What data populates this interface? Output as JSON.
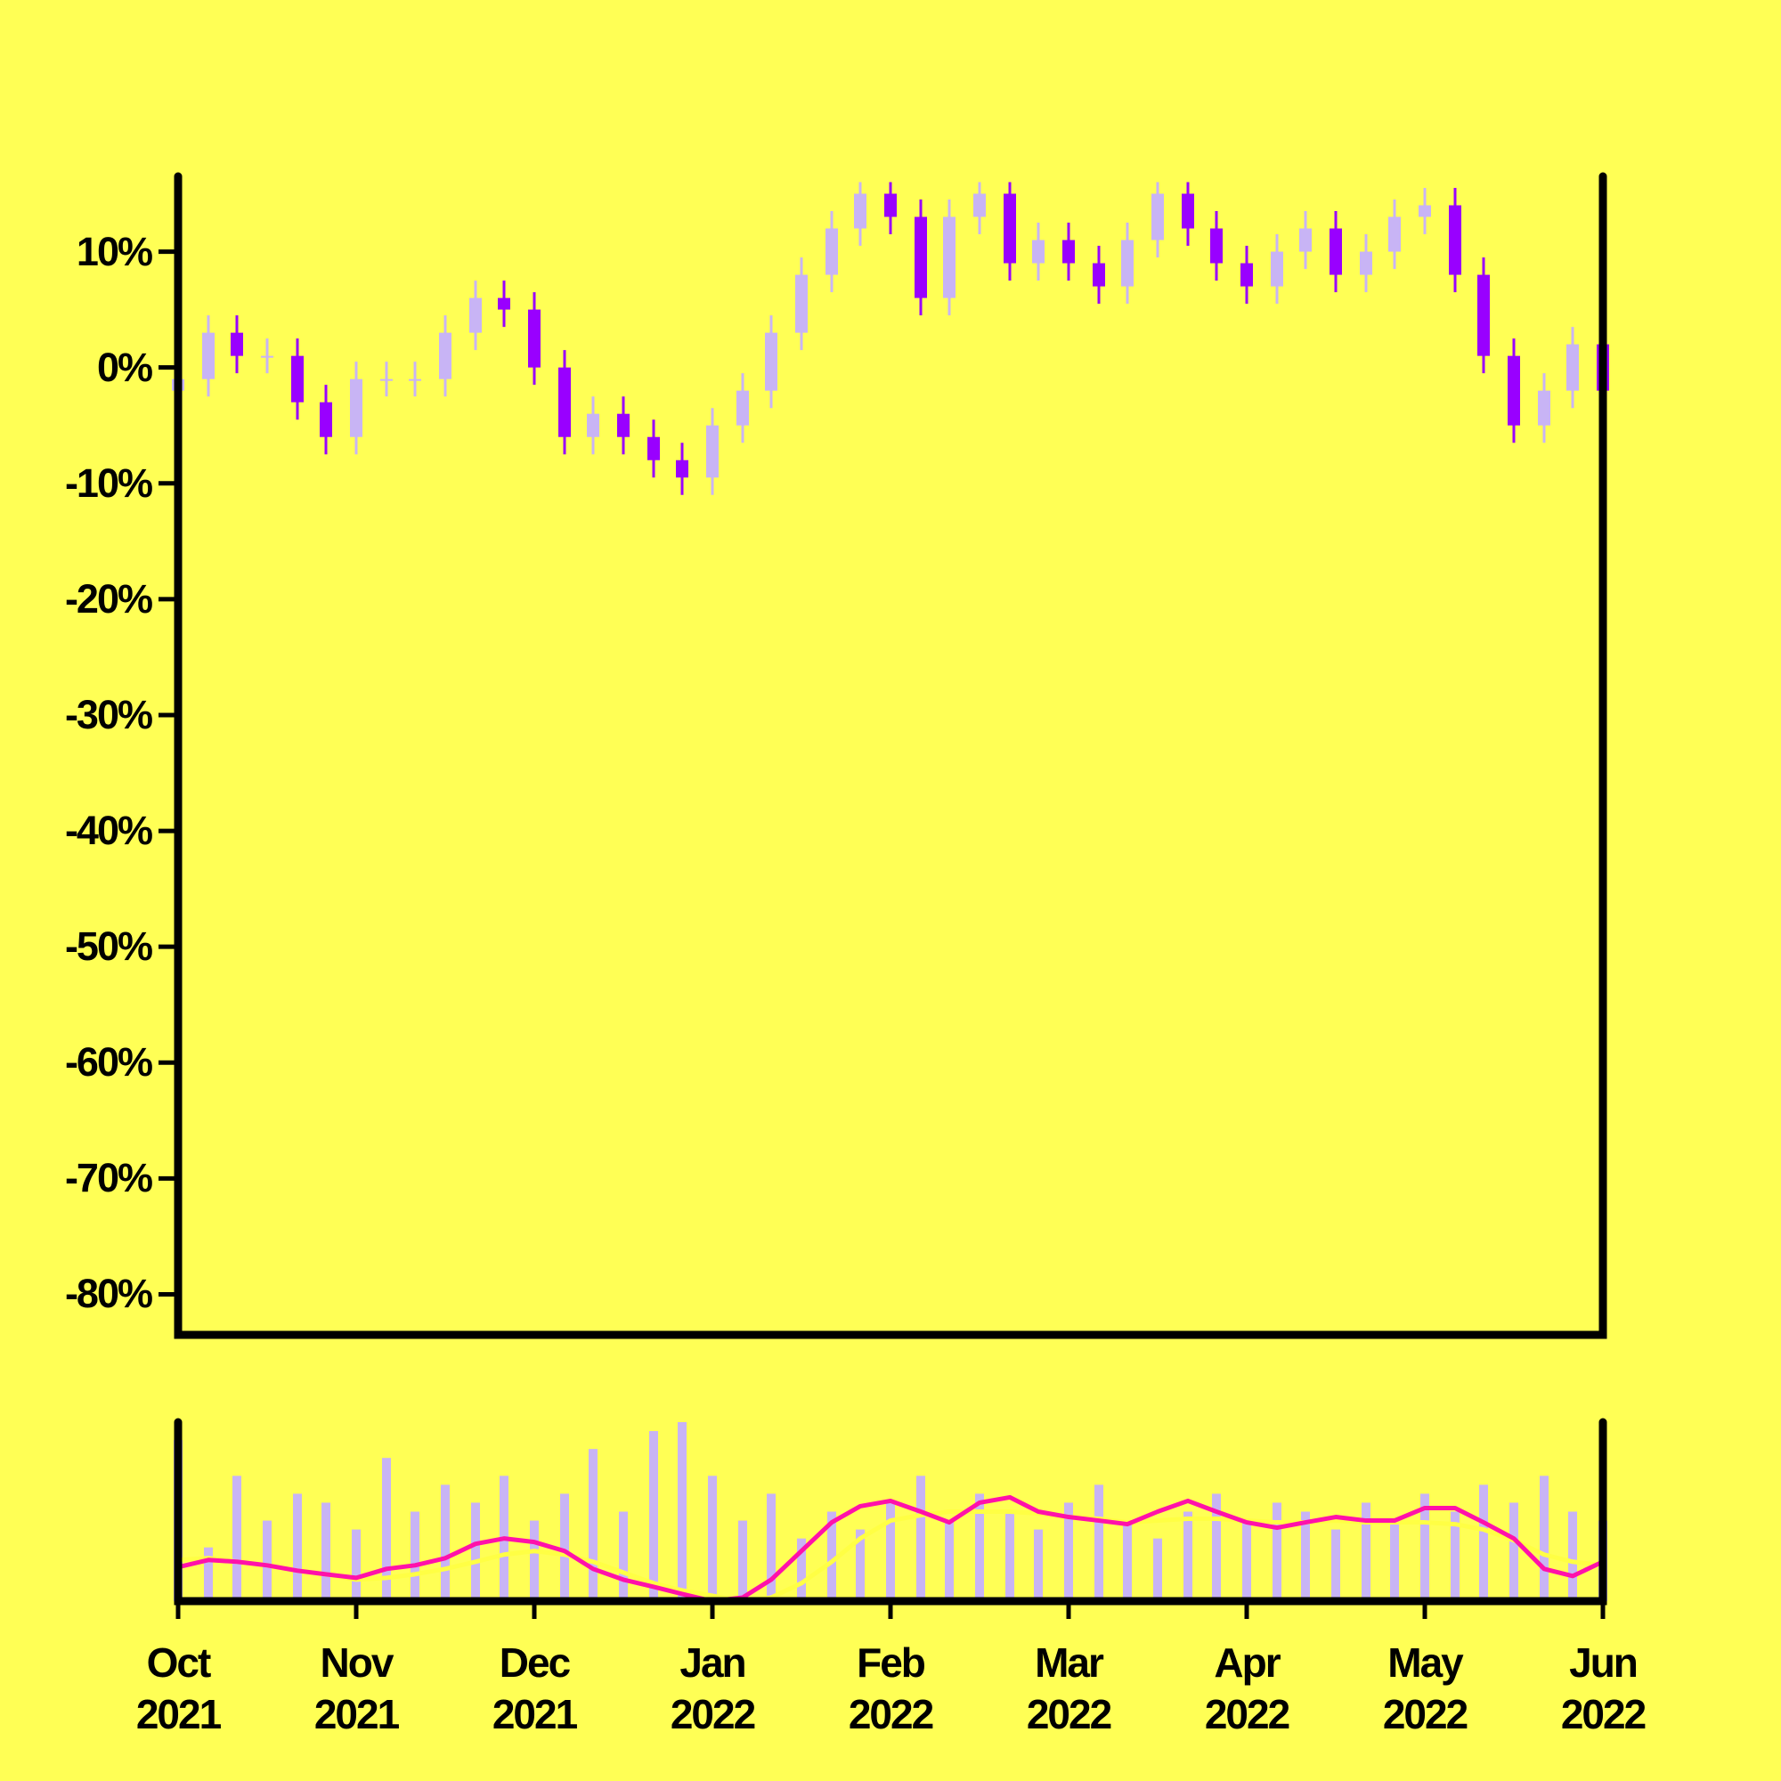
{
  "chart_data": [
    {
      "type": "candlestick",
      "x": [
        0,
        0.17,
        0.33,
        0.5,
        0.67,
        0.83,
        1,
        1.17,
        1.33,
        1.5,
        1.67,
        1.83,
        2,
        2.17,
        2.33,
        2.5,
        2.67,
        2.83,
        3,
        3.17,
        3.33,
        3.5,
        3.67,
        3.83,
        4,
        4.17,
        4.33,
        4.5,
        4.67,
        4.83,
        5,
        5.17,
        5.33,
        5.5,
        5.67,
        5.83,
        6,
        6.17,
        6.33,
        6.5,
        6.67,
        6.83,
        7,
        7.17,
        7.33,
        7.5,
        7.67,
        7.83,
        8
      ],
      "open": [
        -2,
        -1,
        3,
        1,
        1,
        -3,
        -6,
        -1,
        -1,
        -1,
        3,
        6,
        5,
        0,
        -6,
        -4,
        -6,
        -8,
        -9.5,
        -5,
        -2,
        3,
        8,
        12,
        15,
        13,
        6,
        13,
        15,
        9,
        11,
        9,
        7,
        11,
        15,
        12,
        9,
        7,
        10,
        12,
        8,
        10,
        13,
        14,
        8,
        1,
        -5,
        -2,
        2
      ],
      "high": [
        0.5,
        4.5,
        4.5,
        2.5,
        2.5,
        -1.5,
        0.5,
        0.5,
        0.5,
        4.5,
        7.5,
        7.5,
        6.5,
        1.5,
        -2.5,
        -2.5,
        -4.5,
        -6.5,
        -3.5,
        -0.5,
        4.5,
        9.5,
        13.5,
        16,
        16,
        14.5,
        14.5,
        16,
        16,
        12.5,
        12.5,
        10.5,
        12.5,
        16,
        16,
        13.5,
        10.5,
        11.5,
        13.5,
        13.5,
        11.5,
        14.5,
        15.5,
        15.5,
        9.5,
        2.5,
        -0.5,
        3.5,
        3.5
      ],
      "low": [
        -3.5,
        -2.5,
        -0.5,
        -0.5,
        -4.5,
        -7.5,
        -7.5,
        -2.5,
        -2.5,
        -2.5,
        1.5,
        3.5,
        -1.5,
        -7.5,
        -7.5,
        -7.5,
        -9.5,
        -11,
        -11,
        -6.5,
        -3.5,
        1.5,
        6.5,
        10.5,
        11.5,
        4.5,
        4.5,
        11.5,
        7.5,
        7.5,
        7.5,
        5.5,
        5.5,
        9.5,
        10.5,
        7.5,
        5.5,
        5.5,
        8.5,
        6.5,
        6.5,
        8.5,
        11.5,
        6.5,
        -0.5,
        -6.5,
        -6.5,
        -3.5,
        -3.5
      ],
      "close": [
        -1,
        3,
        1,
        1,
        -3,
        -6,
        -1,
        -1,
        -1,
        3,
        6,
        5,
        0,
        -6,
        -4,
        -6,
        -8,
        -9.5,
        -5,
        -2,
        3,
        8,
        12,
        15,
        13,
        6,
        13,
        15,
        9,
        11,
        9,
        7,
        11,
        15,
        12,
        9,
        7,
        10,
        12,
        8,
        10,
        13,
        14,
        8,
        1,
        -5,
        -2,
        2,
        -2
      ],
      "up_color": "#c8b4f5",
      "down_color": "#9900ff",
      "xlim": [
        0,
        8
      ],
      "ylim": [
        -83.5,
        16.5
      ],
      "yticks": [
        {
          "value": 10,
          "label": "10%"
        },
        {
          "value": 0,
          "label": "0%"
        },
        {
          "value": -10,
          "label": "-10%"
        },
        {
          "value": -20,
          "label": "-20%"
        },
        {
          "value": -30,
          "label": "-30%"
        },
        {
          "value": -40,
          "label": "-40%"
        },
        {
          "value": -50,
          "label": "-50%"
        },
        {
          "value": -60,
          "label": "-60%"
        },
        {
          "value": -70,
          "label": "-70%"
        },
        {
          "value": -80,
          "label": "-80%"
        }
      ]
    },
    {
      "type": "volume",
      "x": [
        0,
        0.17,
        0.33,
        0.5,
        0.67,
        0.83,
        1,
        1.17,
        1.33,
        1.5,
        1.67,
        1.83,
        2,
        2.17,
        2.33,
        2.5,
        2.67,
        2.83,
        3,
        3.17,
        3.33,
        3.5,
        3.67,
        3.83,
        4,
        4.17,
        4.33,
        4.5,
        4.67,
        4.83,
        5,
        5.17,
        5.33,
        5.5,
        5.67,
        5.83,
        6,
        6.17,
        6.33,
        6.5,
        6.67,
        6.83,
        7,
        7.17,
        7.33,
        7.5,
        7.67,
        7.83,
        8
      ],
      "series": [
        {
          "kind": "bar",
          "color": "#c8b4f5",
          "values": [
            90,
            30,
            70,
            45,
            60,
            55,
            40,
            80,
            50,
            65,
            55,
            70,
            45,
            60,
            85,
            50,
            95,
            100,
            70,
            45,
            60,
            35,
            50,
            40,
            55,
            70,
            45,
            60,
            50,
            40,
            55,
            65,
            45,
            35,
            50,
            60,
            45,
            55,
            50,
            40,
            55,
            45,
            60,
            50,
            65,
            55,
            70,
            50,
            45
          ]
        },
        {
          "kind": "line",
          "color": "#ffff44",
          "values": [
            23,
            24,
            22,
            20,
            17,
            15,
            12,
            13,
            15,
            18,
            22,
            26,
            28,
            26,
            22,
            16,
            10,
            6,
            3,
            0,
            2,
            10,
            22,
            35,
            45,
            48,
            50,
            50,
            50,
            49,
            47,
            46,
            44,
            45,
            46,
            46,
            45,
            44,
            44,
            45,
            44,
            44,
            44,
            43,
            40,
            34,
            26,
            22,
            20
          ]
        },
        {
          "kind": "line",
          "color": "#ff11aa",
          "values": [
            19,
            23,
            22,
            20,
            17,
            15,
            13,
            18,
            20,
            24,
            32,
            35,
            33,
            28,
            18,
            12,
            8,
            4,
            0,
            2,
            12,
            28,
            44,
            53,
            56,
            50,
            44,
            55,
            58,
            50,
            47,
            45,
            43,
            50,
            56,
            50,
            44,
            41,
            44,
            47,
            45,
            45,
            52,
            52,
            44,
            35,
            18,
            14,
            22
          ]
        }
      ],
      "xlim": [
        0,
        8
      ],
      "ylim": [
        0,
        100
      ],
      "xticks": [
        {
          "value": 0,
          "label": "Oct\n2021"
        },
        {
          "value": 1,
          "label": "Nov\n2021"
        },
        {
          "value": 2,
          "label": "Dec\n2021"
        },
        {
          "value": 3,
          "label": "Jan\n2022"
        },
        {
          "value": 4,
          "label": "Feb\n2022"
        },
        {
          "value": 5,
          "label": "Mar\n2022"
        },
        {
          "value": 6,
          "label": "Apr\n2022"
        },
        {
          "value": 7,
          "label": "May\n2022"
        },
        {
          "value": 8,
          "label": "Jun\n2022"
        }
      ]
    }
  ]
}
